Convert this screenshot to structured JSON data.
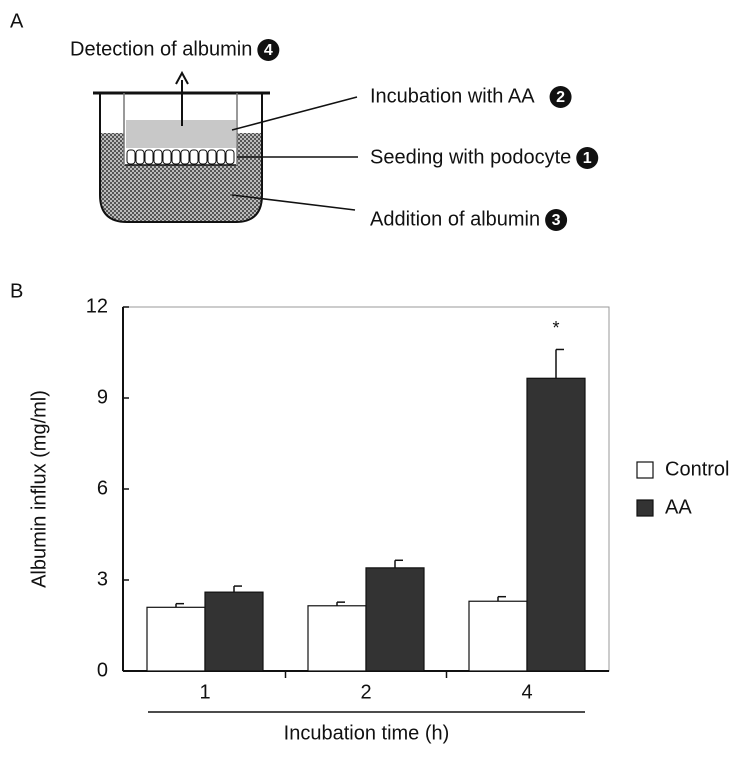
{
  "panel_labels": [
    "A",
    "B"
  ],
  "diagram": {
    "steps": [
      {
        "text": "Detection of albumin",
        "number": "4"
      },
      {
        "text": "Incubation with AA",
        "number": "2"
      },
      {
        "text": "Seeding with podocyte",
        "number": "1"
      },
      {
        "text": "Addition of albumin",
        "number": "3"
      }
    ]
  },
  "chart_data": {
    "type": "bar",
    "ylabel": "Albumin influx (mg/ml)",
    "xlabel": "Incubation time (h)",
    "categories": [
      "1",
      "2",
      "4"
    ],
    "series": [
      {
        "name": "Control",
        "color": "#ffffff",
        "values": [
          2.1,
          2.15,
          2.3
        ],
        "errors": [
          0.12,
          0.12,
          0.15
        ]
      },
      {
        "name": "AA",
        "color": "#333333",
        "values": [
          2.6,
          3.4,
          9.65
        ],
        "errors": [
          0.2,
          0.25,
          0.95
        ]
      }
    ],
    "ylim": [
      0,
      12
    ],
    "yticks": [
      0,
      3,
      6,
      9,
      12
    ],
    "annotations": [
      {
        "text": "*",
        "series": 1,
        "category": 2
      }
    ]
  }
}
